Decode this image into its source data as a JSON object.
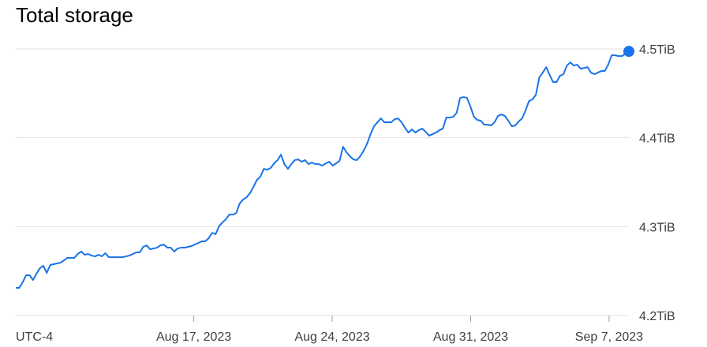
{
  "chart_data": {
    "type": "line",
    "title": "Total storage",
    "timezone": "UTC-4",
    "xlim": [
      "2023-08-08",
      "2023-09-08"
    ],
    "xticks": [
      {
        "value": "2023-08-17",
        "label": "Aug 17, 2023"
      },
      {
        "value": "2023-08-24",
        "label": "Aug 24, 2023"
      },
      {
        "value": "2023-08-31",
        "label": "Aug 31, 2023"
      },
      {
        "value": "2023-09-07",
        "label": "Sep 7, 2023"
      }
    ],
    "ylim": [
      4.2,
      4.5
    ],
    "yticks": [
      {
        "value": 4.2,
        "label": "4.2TiB"
      },
      {
        "value": 4.3,
        "label": "4.3TiB"
      },
      {
        "value": 4.4,
        "label": "4.4TiB"
      },
      {
        "value": 4.5,
        "label": "4.5TiB"
      }
    ],
    "grid": true,
    "series": [
      {
        "name": "Total storage",
        "color": "#1a73e8",
        "values": [
          4.2311,
          4.2311,
          4.2373,
          4.2453,
          4.2453,
          4.2399,
          4.247,
          4.2532,
          4.2559,
          4.2479,
          4.2568,
          4.2577,
          4.2586,
          4.2594,
          4.2621,
          4.2648,
          4.2648,
          4.2648,
          4.2692,
          4.2719,
          4.2683,
          4.2692,
          4.2674,
          4.2665,
          4.2683,
          4.2665,
          4.2701,
          4.2656,
          4.2656,
          4.2656,
          4.2656,
          4.2656,
          4.2665,
          4.2674,
          4.2692,
          4.271,
          4.271,
          4.2772,
          4.2789,
          4.2745,
          4.2754,
          4.2763,
          4.2789,
          4.2798,
          4.2763,
          4.2763,
          4.2719,
          4.2754,
          4.2763,
          4.2763,
          4.2772,
          4.2781,
          4.2798,
          4.2816,
          4.2834,
          4.2834,
          4.2869,
          4.2931,
          4.2914,
          4.3003,
          4.3047,
          4.3082,
          4.3135,
          4.3135,
          4.3153,
          4.326,
          4.3304,
          4.3331,
          4.3375,
          4.3446,
          4.3526,
          4.3561,
          4.365,
          4.3641,
          4.3659,
          4.3712,
          4.3748,
          4.381,
          4.3703,
          4.365,
          4.3703,
          4.3748,
          4.3756,
          4.373,
          4.3748,
          4.3703,
          4.3721,
          4.3703,
          4.3703,
          4.3686,
          4.3712,
          4.373,
          4.3686,
          4.3712,
          4.3739,
          4.3899,
          4.3837,
          4.3792,
          4.3756,
          4.3748,
          4.3792,
          4.3854,
          4.3934,
          4.4041,
          4.4129,
          4.4174,
          4.4218,
          4.4174,
          4.4174,
          4.4174,
          4.4209,
          4.4218,
          4.4174,
          4.4112,
          4.4058,
          4.4094,
          4.4058,
          4.4085,
          4.4103,
          4.4067,
          4.4023,
          4.4041,
          4.4058,
          4.4085,
          4.4103,
          4.4227,
          4.4227,
          4.4236,
          4.428,
          4.4449,
          4.4458,
          4.4449,
          4.4351,
          4.4236,
          4.42,
          4.4192,
          4.4147,
          4.4147,
          4.4138,
          4.4174,
          4.4245,
          4.4263,
          4.4245,
          4.4192,
          4.4129,
          4.4138,
          4.4183,
          4.4218,
          4.4307,
          4.4413,
          4.4431,
          4.4484,
          4.468,
          4.4733,
          4.4795,
          4.4706,
          4.4626,
          4.4626,
          4.4697,
          4.4715,
          4.4813,
          4.4848,
          4.4813,
          4.4822,
          4.4777,
          4.4786,
          4.4795,
          4.4733,
          4.4715,
          4.4733,
          4.4751,
          4.4751,
          4.4822,
          4.4928,
          4.4928,
          4.4919,
          4.4919,
          4.4946,
          4.4972
        ]
      }
    ]
  }
}
